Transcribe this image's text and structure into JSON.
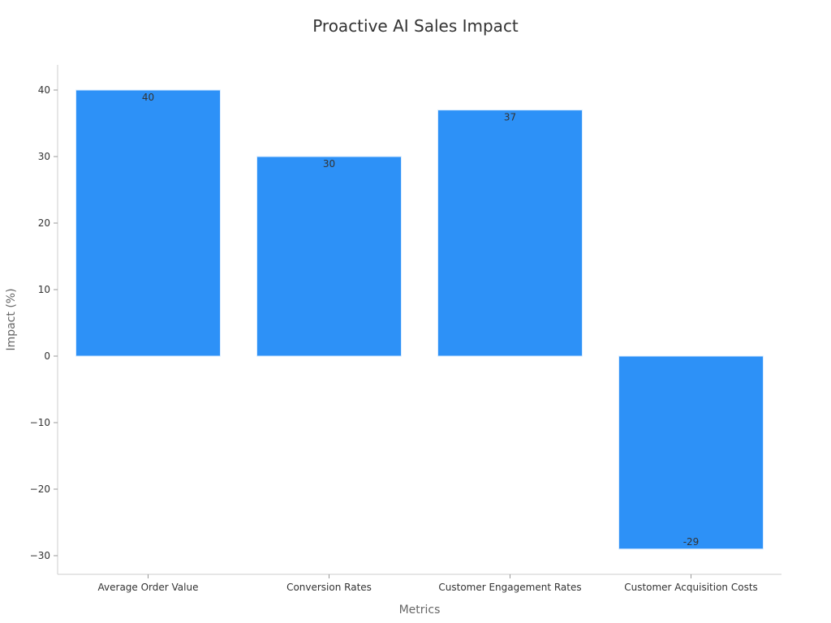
{
  "chart_data": {
    "type": "bar",
    "title": "Proactive AI Sales Impact",
    "xlabel": "Metrics",
    "ylabel": "Impact (%)",
    "categories": [
      "Average Order Value",
      "Conversion Rates",
      "Customer Engagement Rates",
      "Customer Acquisition Costs"
    ],
    "values": [
      40,
      30,
      37,
      -29
    ],
    "data_labels": [
      "40",
      "30",
      "37",
      "-29"
    ],
    "ylim": [
      -33,
      44
    ],
    "yticks": [
      40,
      30,
      20,
      10,
      0,
      -10,
      -20,
      -30
    ],
    "ytick_labels": [
      "40",
      "30",
      "20",
      "10",
      "0",
      "−10",
      "−20",
      "−30"
    ],
    "grid": false,
    "bar_color": "#2d91f7",
    "bar_edge_color": "#d9ecff"
  }
}
